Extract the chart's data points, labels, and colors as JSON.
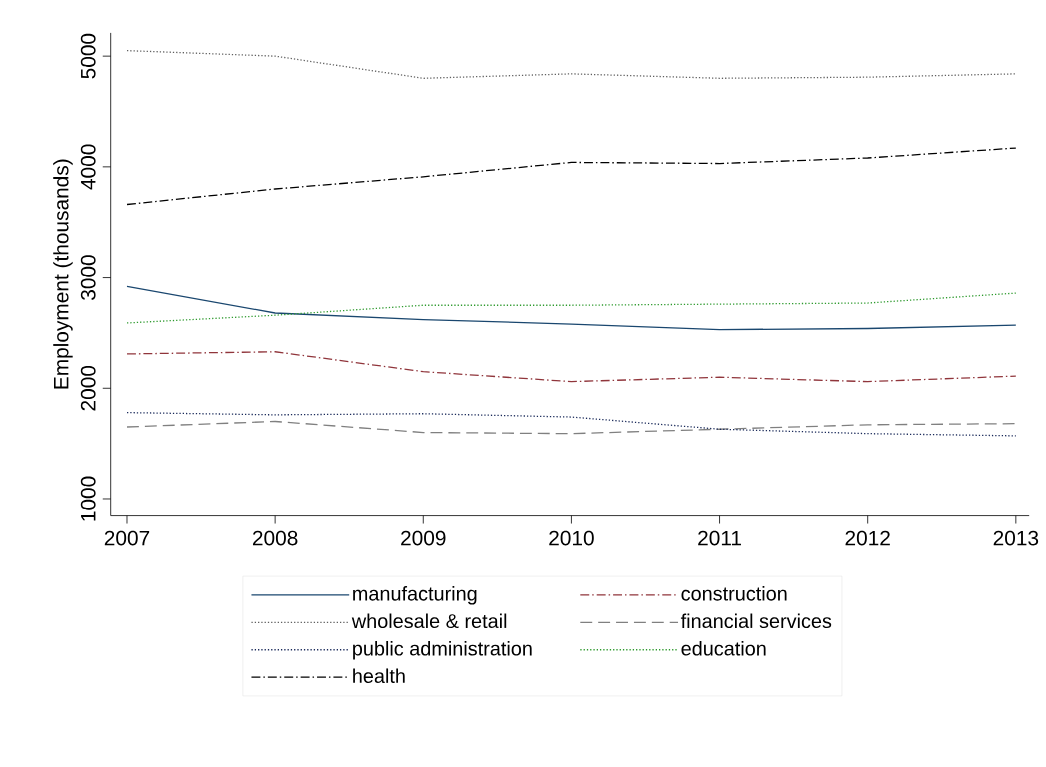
{
  "chart_data": {
    "type": "line",
    "ylabel": "Employment (thousands)",
    "x": [
      2007,
      2008,
      2009,
      2010,
      2011,
      2012,
      2013
    ],
    "xlim": [
      2006.89,
      2013.09
    ],
    "xticks": [
      2007,
      2008,
      2009,
      2010,
      2011,
      2012,
      2013
    ],
    "ylim": [
      850,
      5210
    ],
    "yticks": [
      1000,
      2000,
      3000,
      4000,
      5000
    ],
    "grid": false,
    "legend": "bottom",
    "marker": "none",
    "series": [
      {
        "name": "manufacturing",
        "color": "#1a476f",
        "line_style": "solid",
        "values": [
          2920,
          2680,
          2620,
          2580,
          2530,
          2540,
          2570
        ]
      },
      {
        "name": "construction",
        "color": "#90353b",
        "line_style": "dashdot",
        "values": [
          2310,
          2330,
          2150,
          2060,
          2100,
          2060,
          2110
        ]
      },
      {
        "name": "wholesale & retail",
        "color": "#606060",
        "line_style": "dotted",
        "values": [
          5050,
          5000,
          4800,
          4840,
          4800,
          4810,
          4840
        ]
      },
      {
        "name": "financial services",
        "color": "#808080",
        "line_style": "dashed",
        "values": [
          1650,
          1700,
          1600,
          1590,
          1630,
          1670,
          1680
        ]
      },
      {
        "name": "public administration",
        "color": "#1a2a5a",
        "line_style": "dotted",
        "values": [
          1780,
          1760,
          1770,
          1740,
          1630,
          1590,
          1570
        ]
      },
      {
        "name": "education",
        "color": "#2e9a2e",
        "line_style": "dotted",
        "values": [
          2590,
          2660,
          2750,
          2750,
          2760,
          2770,
          2860
        ]
      },
      {
        "name": "health",
        "color": "#000000",
        "line_style": "dashdot",
        "values": [
          3660,
          3800,
          3910,
          4040,
          4030,
          4080,
          4170
        ]
      }
    ]
  }
}
